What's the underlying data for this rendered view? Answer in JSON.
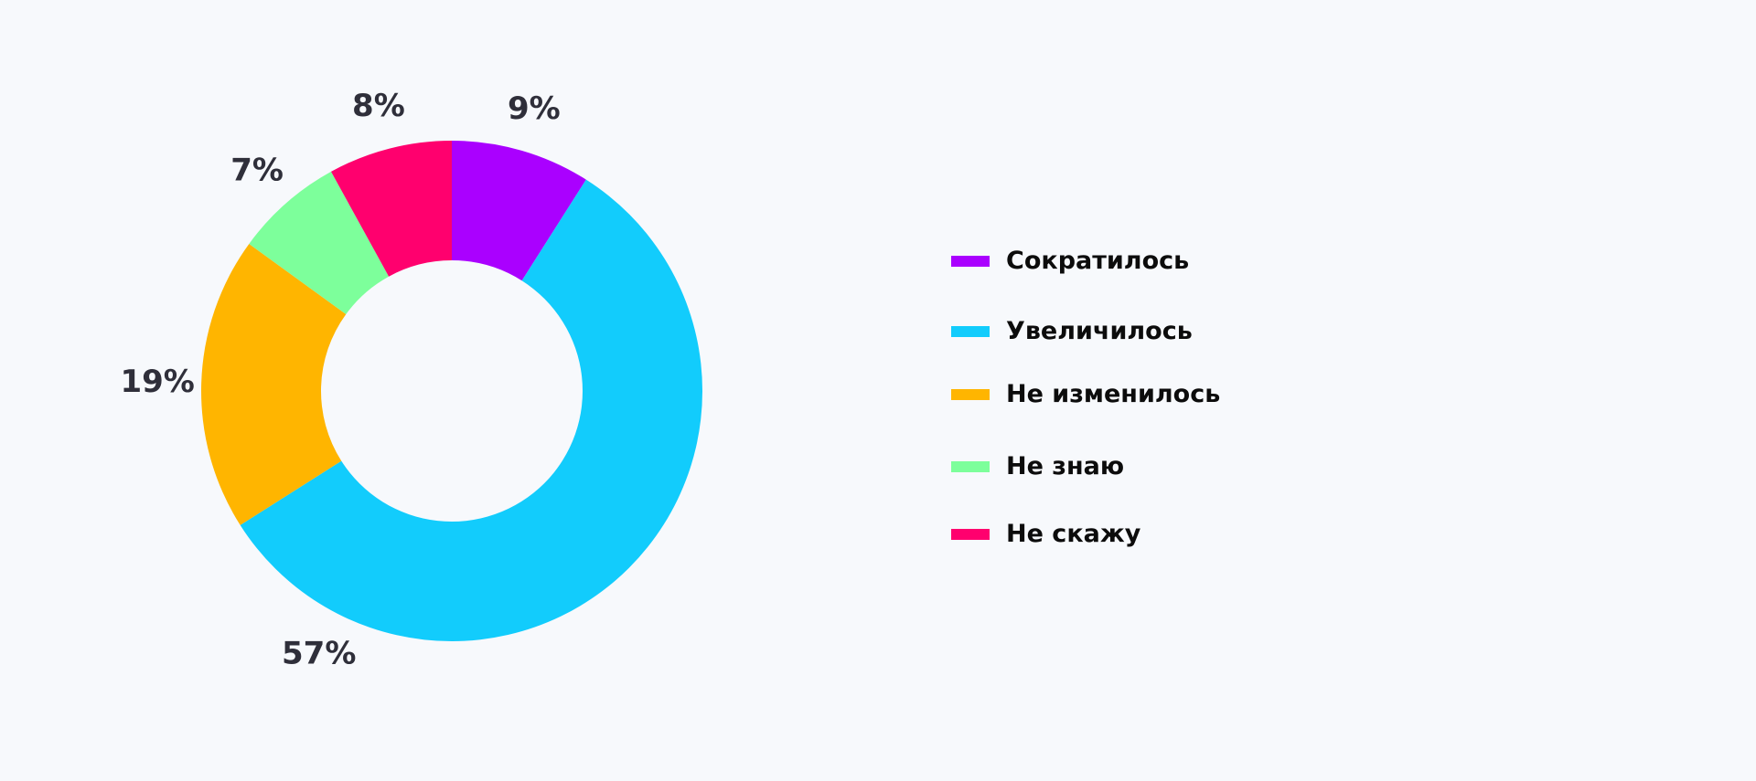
{
  "chart_data": {
    "type": "pie",
    "variant": "donut",
    "slices": [
      {
        "label": "Сократилось",
        "value": 9,
        "value_label": "9%",
        "color": "#aa00ff"
      },
      {
        "label": "Увеличилось",
        "value": 57,
        "value_label": "57%",
        "color": "#12ccfc"
      },
      {
        "label": "Не изменилось",
        "value": 19,
        "value_label": "19%",
        "color": "#ffb500"
      },
      {
        "label": "Не знаю",
        "value": 7,
        "value_label": "7%",
        "color": "#7dff9b"
      },
      {
        "label": "Не скажу",
        "value": 8,
        "value_label": "8%",
        "color": "#ff006e"
      }
    ],
    "legend_position": "right",
    "title": "",
    "grid": false
  }
}
